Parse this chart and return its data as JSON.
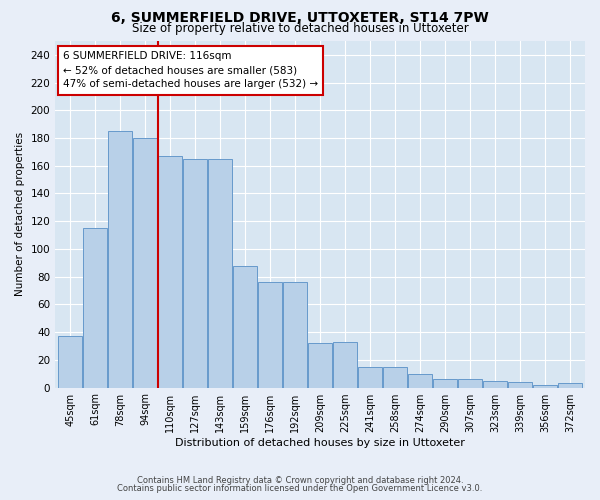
{
  "title": "6, SUMMERFIELD DRIVE, UTTOXETER, ST14 7PW",
  "subtitle": "Size of property relative to detached houses in Uttoxeter",
  "xlabel": "Distribution of detached houses by size in Uttoxeter",
  "ylabel": "Number of detached properties",
  "categories": [
    "45sqm",
    "61sqm",
    "78sqm",
    "94sqm",
    "110sqm",
    "127sqm",
    "143sqm",
    "159sqm",
    "176sqm",
    "192sqm",
    "209sqm",
    "225sqm",
    "241sqm",
    "258sqm",
    "274sqm",
    "290sqm",
    "307sqm",
    "323sqm",
    "339sqm",
    "356sqm",
    "372sqm"
  ],
  "bar_heights": [
    37,
    115,
    185,
    180,
    167,
    165,
    165,
    88,
    76,
    76,
    32,
    33,
    15,
    15,
    10,
    6,
    6,
    5,
    4,
    2,
    3
  ],
  "bar_color": "#b8d0e8",
  "bar_edge_color": "#6699cc",
  "property_line_color": "#cc0000",
  "property_line_x": 3.5,
  "annotation_text": "6 SUMMERFIELD DRIVE: 116sqm\n← 52% of detached houses are smaller (583)\n47% of semi-detached houses are larger (532) →",
  "ylim": [
    0,
    250
  ],
  "ytick_step": 20,
  "footer1": "Contains HM Land Registry data © Crown copyright and database right 2024.",
  "footer2": "Contains public sector information licensed under the Open Government Licence v3.0.",
  "fig_bg_color": "#e8eef8",
  "plot_bg_color": "#d8e6f2"
}
